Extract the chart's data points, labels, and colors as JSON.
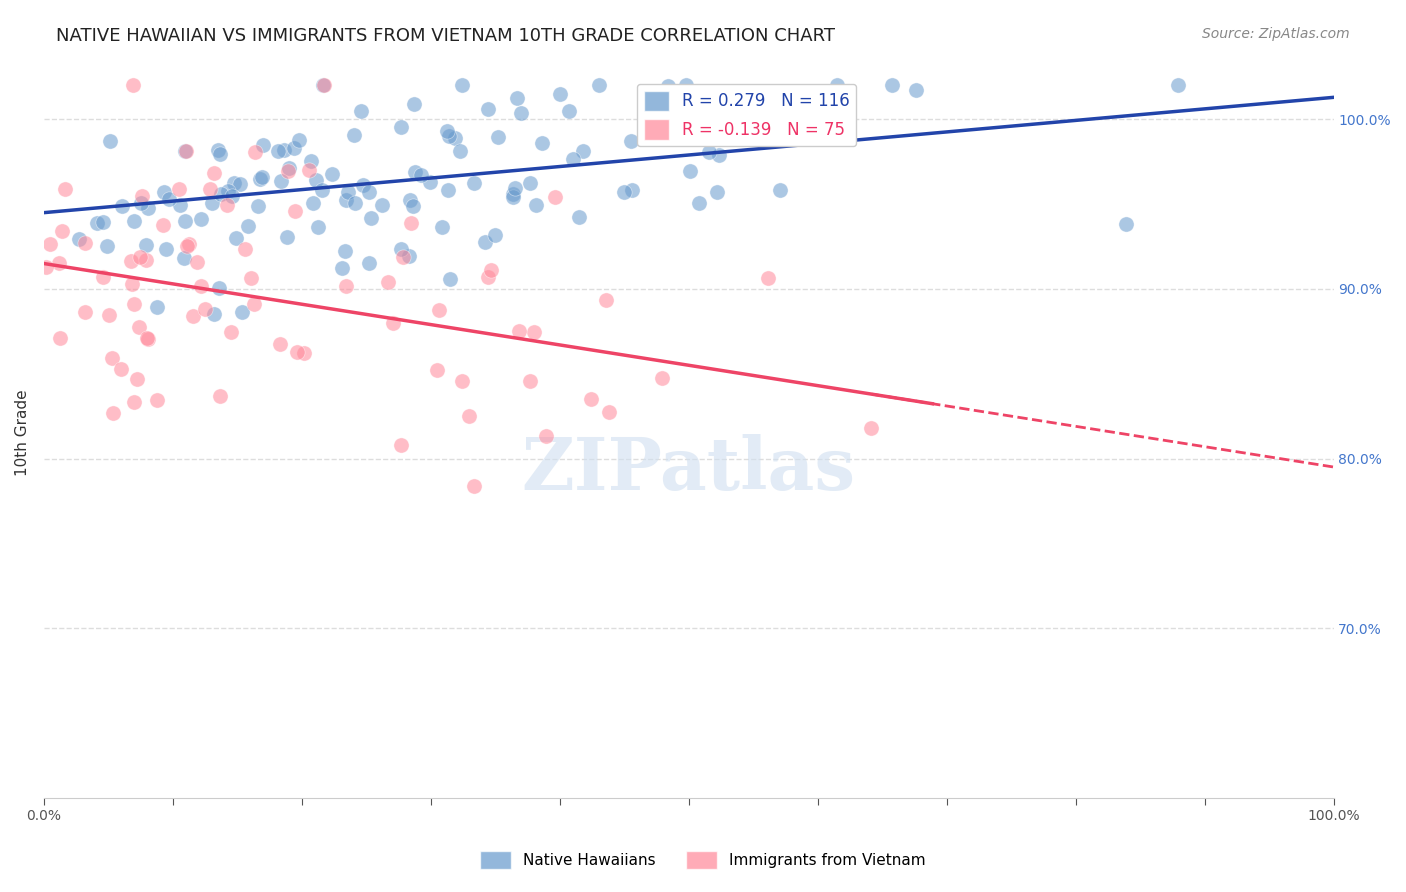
{
  "title": "NATIVE HAWAIIAN VS IMMIGRANTS FROM VIETNAM 10TH GRADE CORRELATION CHART",
  "source": "Source: ZipAtlas.com",
  "xlabel": "",
  "ylabel": "10th Grade",
  "xlim": [
    0.0,
    1.0
  ],
  "ylim": [
    0.6,
    1.03
  ],
  "yticks": [
    0.7,
    0.8,
    0.9,
    1.0
  ],
  "ytick_labels": [
    "70.0%",
    "80.0%",
    "90.0%",
    "100.0%"
  ],
  "xticks": [
    0.0,
    0.1,
    0.2,
    0.3,
    0.4,
    0.5,
    0.6,
    0.7,
    0.8,
    0.9,
    1.0
  ],
  "xtick_labels": [
    "0.0%",
    "",
    "",
    "",
    "",
    "",
    "",
    "",
    "",
    "",
    "100.0%"
  ],
  "blue_color": "#6699cc",
  "pink_color": "#ff8899",
  "blue_line_color": "#2244aa",
  "pink_line_color": "#ee4466",
  "legend_blue_R": "0.279",
  "legend_blue_N": "116",
  "legend_pink_R": "-0.139",
  "legend_pink_N": "75",
  "legend_label_blue": "Native Hawaiians",
  "legend_label_pink": "Immigrants from Vietnam",
  "watermark": "ZIPatlas",
  "blue_R": 0.279,
  "blue_N": 116,
  "pink_R": -0.139,
  "pink_N": 75,
  "blue_intercept": 0.945,
  "blue_slope": 0.068,
  "pink_intercept": 0.915,
  "pink_slope": -0.12,
  "background_color": "#ffffff",
  "grid_color": "#dddddd",
  "axis_color": "#cccccc",
  "title_fontsize": 13,
  "source_fontsize": 10,
  "label_fontsize": 11,
  "tick_fontsize": 10,
  "legend_fontsize": 12,
  "seed": 42
}
